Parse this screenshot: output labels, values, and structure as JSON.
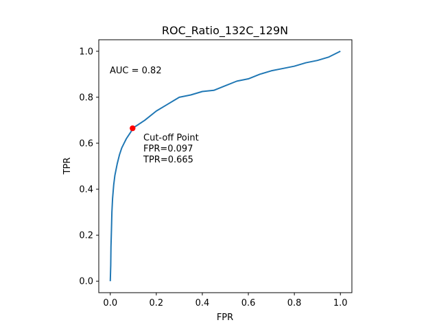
{
  "chart_data": {
    "type": "line",
    "title": "ROC_Ratio_132C_129N",
    "xlabel": "FPR",
    "ylabel": "TPR",
    "xlim": [
      -0.05,
      1.05
    ],
    "ylim": [
      -0.05,
      1.05
    ],
    "x_ticks": [
      "0.0",
      "0.2",
      "0.4",
      "0.6",
      "0.8",
      "1.0"
    ],
    "y_ticks": [
      "0.0",
      "0.2",
      "0.4",
      "0.6",
      "0.8",
      "1.0"
    ],
    "grid": false,
    "legend": "none",
    "line_color": "#1f77b4",
    "marker_color": "#ff0000",
    "series": [
      {
        "x": [
          0.0,
          0.002,
          0.003,
          0.005,
          0.007,
          0.01,
          0.015,
          0.02,
          0.03,
          0.04,
          0.05,
          0.06,
          0.07,
          0.08,
          0.09,
          0.097,
          0.12,
          0.15,
          0.2,
          0.25,
          0.3,
          0.35,
          0.4,
          0.45,
          0.5,
          0.55,
          0.6,
          0.65,
          0.7,
          0.75,
          0.8,
          0.85,
          0.9,
          0.95,
          1.0
        ],
        "y": [
          0.0,
          0.07,
          0.15,
          0.22,
          0.3,
          0.36,
          0.42,
          0.46,
          0.51,
          0.55,
          0.58,
          0.6,
          0.62,
          0.635,
          0.65,
          0.665,
          0.68,
          0.7,
          0.74,
          0.77,
          0.8,
          0.81,
          0.825,
          0.83,
          0.85,
          0.87,
          0.88,
          0.9,
          0.915,
          0.925,
          0.935,
          0.95,
          0.96,
          0.975,
          1.0
        ]
      }
    ],
    "cutoff": {
      "fpr": 0.097,
      "tpr": 0.665,
      "label_line1": "Cut-off Point",
      "label_line2": "FPR=0.097",
      "label_line3": "TPR=0.665"
    },
    "auc_label": "AUC = 0.82"
  }
}
